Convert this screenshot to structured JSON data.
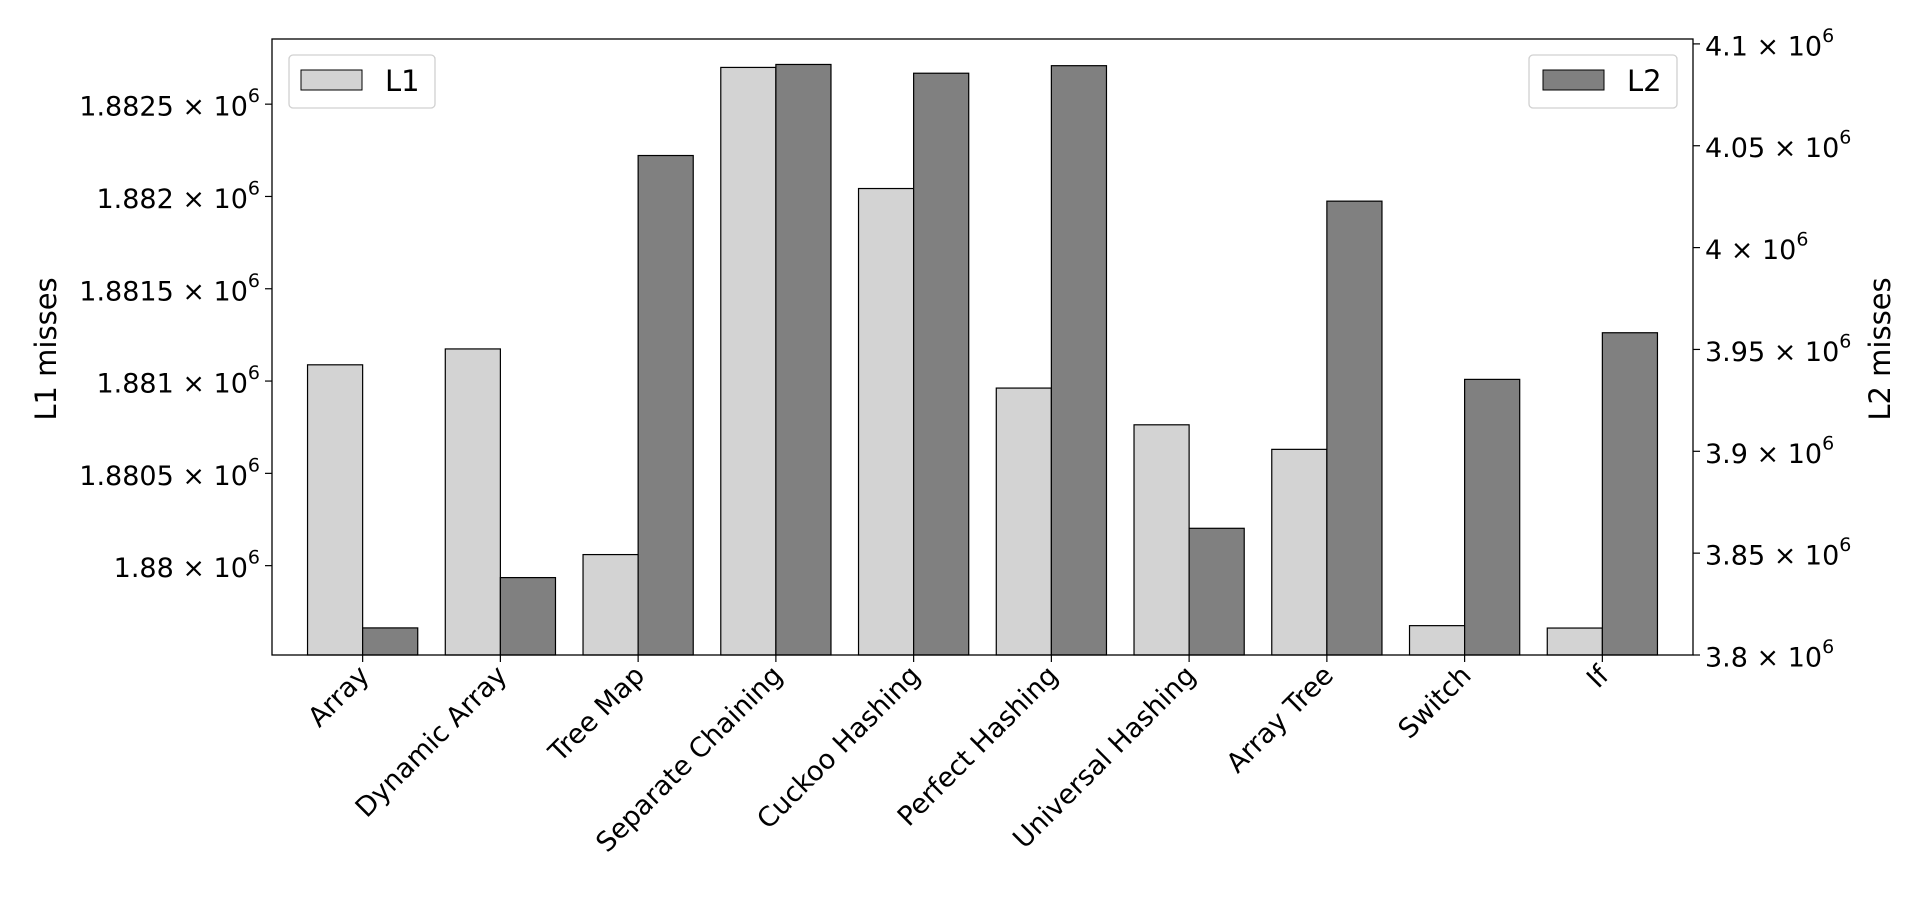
{
  "chart_data": {
    "type": "bar",
    "categories": [
      "Array",
      "Dynamic Array",
      "Tree Map",
      "Separate Chaining",
      "Cuckoo Hashing",
      "Perfect Hashing",
      "Universal Hashing",
      "Array Tree",
      "Switch",
      "If"
    ],
    "series": [
      {
        "name": "L1",
        "axis": "left",
        "color": "#d3d3d3",
        "values": [
          1881088,
          1881174,
          1880060,
          1882699,
          1882043,
          1880962,
          1880763,
          1880630,
          1879675,
          1879662
        ]
      },
      {
        "name": "L2",
        "axis": "right",
        "color": "#808080",
        "values": [
          3813300,
          3838000,
          4045200,
          4089900,
          4085600,
          4089300,
          3862200,
          4022800,
          3935300,
          3958200
        ]
      }
    ],
    "xlabel": "",
    "ylabel": "L1 misses",
    "ylabel_right": "L2 misses",
    "ylim": [
      1879516,
      1882853
    ],
    "ylim_right": [
      3800000,
      4102400
    ],
    "yticks": [
      {
        "value": 1880000,
        "label": "1.88 × 10^6"
      },
      {
        "value": 1880500,
        "label": "1.8805 × 10^6"
      },
      {
        "value": 1881000,
        "label": "1.881 × 10^6"
      },
      {
        "value": 1881500,
        "label": "1.8815 × 10^6"
      },
      {
        "value": 1882000,
        "label": "1.882 × 10^6"
      },
      {
        "value": 1882500,
        "label": "1.8825 × 10^6"
      }
    ],
    "yticks_right": [
      {
        "value": 3800000,
        "label": "3.8 × 10^6"
      },
      {
        "value": 3850000,
        "label": "3.85 × 10^6"
      },
      {
        "value": 3900000,
        "label": "3.9 × 10^6"
      },
      {
        "value": 3950000,
        "label": "3.95 × 10^6"
      },
      {
        "value": 4000000,
        "label": "4 × 10^6"
      },
      {
        "value": 4050000,
        "label": "4.05 × 10^6"
      },
      {
        "value": 4100000,
        "label": "4.1 × 10^6"
      }
    ],
    "legend": [
      {
        "label": "L1",
        "placement": "top-left"
      },
      {
        "label": "L2",
        "placement": "top-right"
      }
    ],
    "grid": false
  }
}
